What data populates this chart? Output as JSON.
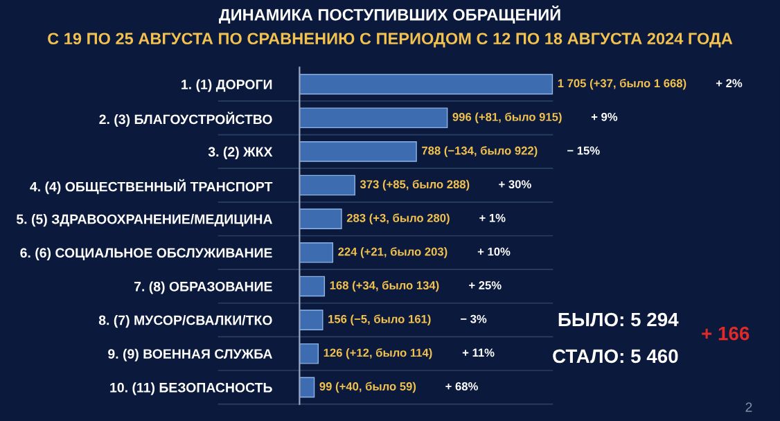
{
  "chart_data": {
    "type": "bar",
    "orientation": "horizontal",
    "title": "ДИНАМИКА ПОСТУПИВШИХ ОБРАЩЕНИЙ",
    "subtitle": "С 19 ПО 25 АВГУСТА ПО СРАВНЕНИЮ С ПЕРИОДОМ С 12 ПО 18 АВГУСТА 2024 ГОДА",
    "categories": [
      "1. (1) ДОРОГИ",
      "2. (3) БЛАГОУСТРОЙСТВО",
      "3. (2) ЖКХ",
      "4. (4) ОБЩЕСТВЕННЫЙ ТРАНСПОРТ",
      "5. (5) ЗДРАВООХРАНЕНИЕ/МЕДИЦИНА",
      "6. (6) СОЦИАЛЬНОЕ ОБСЛУЖИВАНИЕ",
      "7. (8) ОБРАЗОВАНИЕ",
      "8. (7) МУСОР/СВАЛКИ/ТКО",
      "9. (9) ВОЕННАЯ СЛУЖБА",
      "10. (11) БЕЗОПАСНОСТЬ"
    ],
    "values": [
      1705,
      996,
      788,
      373,
      283,
      224,
      168,
      156,
      126,
      99
    ],
    "color": "#3d6db0",
    "value_labels": [
      "1 705 (+37, было 1 668)",
      "996 (+81, было 915)",
      "788 (−134, было 922)",
      "373 (+85, было 288)",
      "283 (+3, было 280)",
      "224 (+21, было 203)",
      "168 (+34, было 134)",
      "156 (−5, было 161)",
      "126 (+12, было 114)",
      "99 (+40, было 59)"
    ],
    "annotations": [
      "+ 2%",
      "+ 9%",
      "− 15%",
      "+ 30%",
      "+ 1%",
      "+ 10%",
      "+ 25%",
      "− 3%",
      "+ 11%",
      "+ 68%",
      "БЫЛО: 5 294",
      "СТАЛО: 5 460",
      "+ 166",
      "2"
    ]
  }
}
